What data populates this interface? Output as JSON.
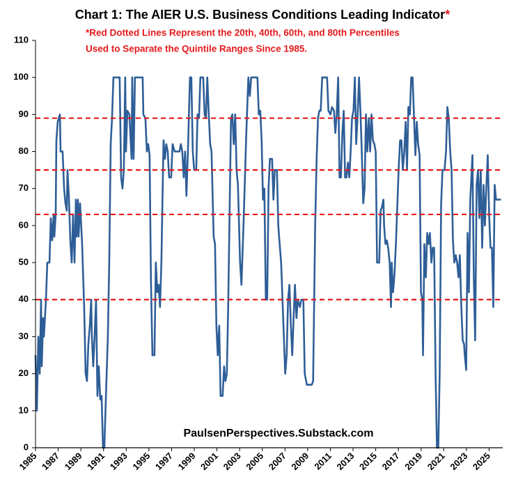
{
  "chart_data": {
    "type": "line",
    "title": "Chart 1: The AIER U.S. Business Conditions Leading Indicator",
    "title_asterisk": "*",
    "subtitle": [
      "*Red Dotted Lines Represent the 20th, 40th, 60th, and 80th Percentiles",
      "Used to Separate the Quintile Ranges Since 1985."
    ],
    "annotation": "PaulsenPerspectives.Substack.com",
    "color": "#2e5e97",
    "reference_lines": {
      "values": [
        89,
        75,
        63,
        40
      ],
      "color": "#e41a1c"
    },
    "xlim": [
      1985,
      2026.2
    ],
    "xticks": [
      1985,
      1987,
      1989,
      1991,
      1993,
      1995,
      1997,
      1999,
      2001,
      2003,
      2005,
      2007,
      2009,
      2011,
      2013,
      2015,
      2017,
      2019,
      2021,
      2023,
      2025
    ],
    "ylim": [
      0,
      110
    ],
    "yticks": [
      0,
      10,
      20,
      30,
      40,
      50,
      60,
      70,
      80,
      90,
      100,
      110
    ],
    "x": [
      1985.0,
      1985.12,
      1985.25,
      1985.37,
      1985.49,
      1985.55,
      1985.67,
      1985.74,
      1985.92,
      1986.04,
      1986.23,
      1986.35,
      1986.47,
      1986.6,
      1986.66,
      1986.78,
      1986.84,
      1986.96,
      1987.15,
      1987.21,
      1987.39,
      1987.52,
      1987.64,
      1987.76,
      1987.82,
      1987.94,
      1988.07,
      1988.19,
      1988.25,
      1988.31,
      1988.44,
      1988.56,
      1988.62,
      1988.74,
      1988.8,
      1988.93,
      1989.11,
      1989.29,
      1989.42,
      1989.54,
      1989.66,
      1989.79,
      1989.91,
      1989.97,
      1990.09,
      1990.21,
      1990.34,
      1990.46,
      1990.58,
      1990.71,
      1990.83,
      1990.95,
      1991.07,
      1991.2,
      1991.38,
      1991.5,
      1991.63,
      1991.75,
      1991.87,
      1992.18,
      1992.42,
      1992.55,
      1992.67,
      1992.79,
      1992.91,
      1992.98,
      1993.1,
      1993.28,
      1993.34,
      1993.47,
      1993.53,
      1993.65,
      1993.77,
      1994.45,
      1994.51,
      1994.69,
      1994.82,
      1994.94,
      1995.06,
      1995.18,
      1995.31,
      1995.49,
      1995.61,
      1995.74,
      1995.86,
      1995.98,
      1996.1,
      1996.29,
      1996.41,
      1996.53,
      1996.66,
      1996.78,
      1996.96,
      1997.09,
      1997.27,
      1997.7,
      1997.82,
      1997.94,
      1998.07,
      1998.19,
      1998.31,
      1998.44,
      1998.62,
      1998.74,
      1998.87,
      1998.99,
      1999.17,
      1999.29,
      1999.42,
      1999.54,
      1999.79,
      1999.91,
      2000.03,
      2000.15,
      2000.28,
      2000.4,
      2000.52,
      2000.71,
      2000.83,
      2000.95,
      2001.07,
      2001.2,
      2001.32,
      2001.5,
      2001.63,
      2001.75,
      2001.87,
      2001.99,
      2002.24,
      2002.36,
      2002.48,
      2002.61,
      2002.73,
      2002.85,
      2003.04,
      2003.16,
      2003.34,
      2003.59,
      2003.77,
      2003.9,
      2004.02,
      2004.57,
      2004.69,
      2004.82,
      2004.94,
      2005.06,
      2005.18,
      2005.31,
      2005.43,
      2005.55,
      2005.67,
      2005.86,
      2005.98,
      2006.1,
      2006.29,
      2006.41,
      2006.53,
      2006.66,
      2006.84,
      2007.02,
      2007.15,
      2007.27,
      2007.39,
      2007.52,
      2007.64,
      2007.76,
      2007.88,
      2008.01,
      2008.13,
      2008.31,
      2008.44,
      2008.62,
      2008.74,
      2008.93,
      2009.36,
      2009.48,
      2009.66,
      2009.79,
      2009.91,
      2010.03,
      2010.15,
      2010.28,
      2010.71,
      2010.83,
      2011.01,
      2011.14,
      2011.32,
      2011.44,
      2011.56,
      2011.69,
      2011.81,
      2011.93,
      2012.06,
      2012.18,
      2012.3,
      2012.42,
      2012.55,
      2012.67,
      2012.79,
      2012.91,
      2013.04,
      2013.16,
      2013.28,
      2013.41,
      2013.53,
      2013.65,
      2013.77,
      2013.9,
      2014.02,
      2014.14,
      2014.26,
      2014.39,
      2014.51,
      2014.63,
      2014.75,
      2014.88,
      2015.0,
      2015.12,
      2015.31,
      2015.43,
      2015.55,
      2015.68,
      2015.74,
      2015.86,
      2015.98,
      2016.1,
      2016.23,
      2016.35,
      2016.41,
      2016.53,
      2016.66,
      2016.78,
      2016.9,
      2017.02,
      2017.15,
      2017.27,
      2017.39,
      2017.52,
      2017.64,
      2017.76,
      2017.88,
      2018.01,
      2018.13,
      2018.25,
      2018.37,
      2018.5,
      2018.62,
      2018.74,
      2018.87,
      2018.99,
      2019.11,
      2019.17,
      2019.29,
      2019.42,
      2019.54,
      2019.66,
      2019.78,
      2019.91,
      2020.03,
      2020.15,
      2020.28,
      2020.4,
      2020.52,
      2020.64,
      2020.77,
      2020.89,
      2021.07,
      2021.2,
      2021.32,
      2021.44,
      2021.57,
      2021.69,
      2021.81,
      2021.93,
      2022.06,
      2022.18,
      2022.3,
      2022.42,
      2022.55,
      2022.67,
      2022.79,
      2022.85,
      2022.98,
      2023.1,
      2023.22,
      2023.34,
      2023.47,
      2023.53,
      2023.65,
      2023.77,
      2023.9,
      2024.02,
      2024.14,
      2024.26,
      2024.39,
      2024.51,
      2024.63,
      2024.75,
      2024.88,
      2025.0,
      2025.12,
      2025.25,
      2025.37,
      2025.49,
      2025.61,
      2026.04
    ],
    "values": [
      25,
      10,
      30,
      20,
      40,
      22,
      35,
      30,
      40,
      50,
      50,
      62,
      56,
      63,
      57,
      63,
      83,
      88,
      90,
      80,
      80,
      70,
      66,
      64,
      75,
      68,
      56,
      50,
      56,
      63,
      50,
      67,
      57,
      67,
      57,
      66,
      55,
      38,
      20,
      18,
      28,
      33,
      40,
      30,
      22,
      30,
      40,
      14,
      22,
      13,
      14,
      0,
      0,
      13,
      30,
      50,
      82,
      89,
      100,
      100,
      100,
      73,
      70,
      75,
      100,
      80,
      91,
      90,
      86,
      78,
      100,
      78,
      100,
      100,
      90,
      89,
      80,
      82,
      79,
      45,
      25,
      25,
      50,
      42,
      44,
      38,
      50,
      83,
      78,
      82,
      80,
      73,
      73,
      82,
      80,
      80,
      82,
      80,
      73,
      80,
      68,
      80,
      100,
      100,
      80,
      75,
      75,
      90,
      89,
      100,
      100,
      90,
      89,
      100,
      90,
      82,
      80,
      57,
      55,
      33,
      25,
      33,
      14,
      14,
      22,
      18,
      20,
      38,
      89,
      90,
      82,
      90,
      75,
      71,
      50,
      44,
      60,
      85,
      100,
      95,
      100,
      100,
      90,
      91,
      83,
      67,
      70,
      40,
      40,
      70,
      78,
      78,
      67,
      75,
      75,
      60,
      55,
      50,
      35,
      20,
      25,
      40,
      44,
      33,
      25,
      35,
      44,
      35,
      40,
      38,
      40,
      40,
      20,
      17,
      17,
      18,
      60,
      78,
      89,
      91,
      91,
      100,
      100,
      91,
      90,
      92,
      91,
      85,
      90,
      100,
      73,
      73,
      85,
      91,
      73,
      73,
      77,
      73,
      80,
      89,
      91,
      100,
      82,
      90,
      100,
      91,
      80,
      66,
      70,
      90,
      80,
      89,
      80,
      90,
      83,
      82,
      80,
      50,
      50,
      64,
      65,
      67,
      60,
      55,
      56,
      54,
      50,
      38,
      50,
      42,
      47,
      55,
      65,
      75,
      83,
      83,
      75,
      80,
      88,
      75,
      92,
      90,
      100,
      100,
      90,
      79,
      88,
      82,
      79,
      42,
      40,
      25,
      55,
      46,
      58,
      55,
      58,
      50,
      54,
      54,
      20,
      0,
      0,
      20,
      66,
      75,
      75,
      80,
      92,
      89,
      80,
      75,
      56,
      50,
      52,
      50,
      46,
      52,
      38,
      29,
      28,
      25,
      21,
      58,
      42,
      67,
      75,
      79,
      46,
      29,
      71,
      75,
      62,
      75,
      54,
      71,
      60,
      70,
      79,
      63,
      54,
      54,
      38,
      71,
      67,
      67
    ]
  }
}
